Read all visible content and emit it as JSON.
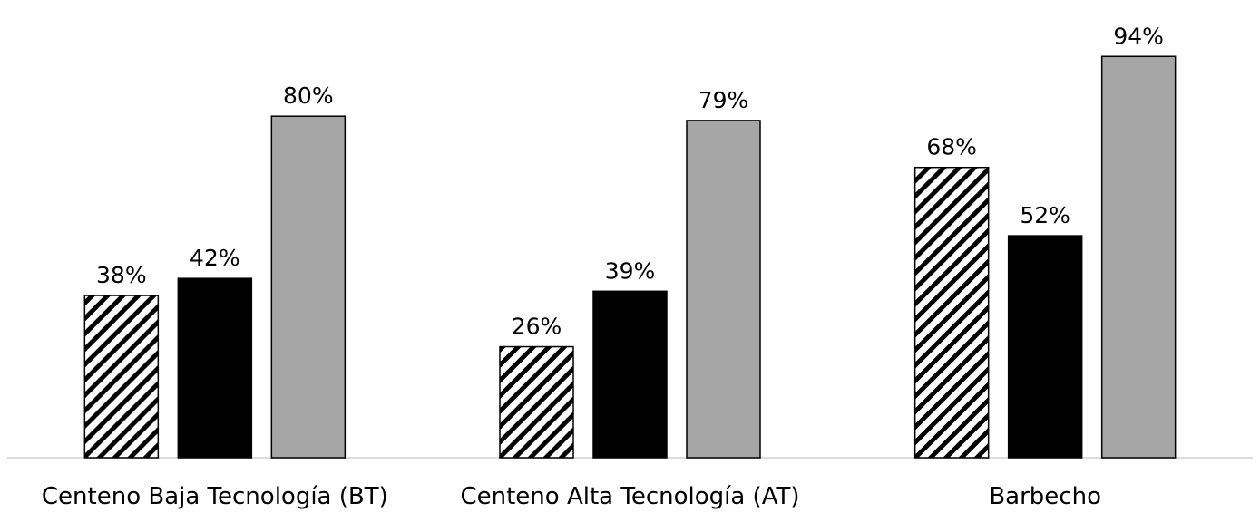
{
  "chart_data": {
    "type": "bar",
    "categories": [
      "Centeno Baja Tecnología (BT)",
      "Centeno Alta Tecnología (AT)",
      "Barbecho"
    ],
    "series": [
      {
        "color": "#000000",
        "pattern": "diagonal-hatch",
        "values": [
          38,
          26,
          68
        ],
        "value_labels": [
          "38%",
          "26%",
          "68%"
        ]
      },
      {
        "color": "#000000",
        "values": [
          42,
          39,
          52
        ],
        "value_labels": [
          "42%",
          "39%",
          "52%"
        ]
      },
      {
        "color": "#a6a6a6",
        "values": [
          80,
          79,
          94
        ],
        "value_labels": [
          "80%",
          "79%",
          "94%"
        ]
      }
    ],
    "ylim": [
      0,
      100
    ]
  }
}
